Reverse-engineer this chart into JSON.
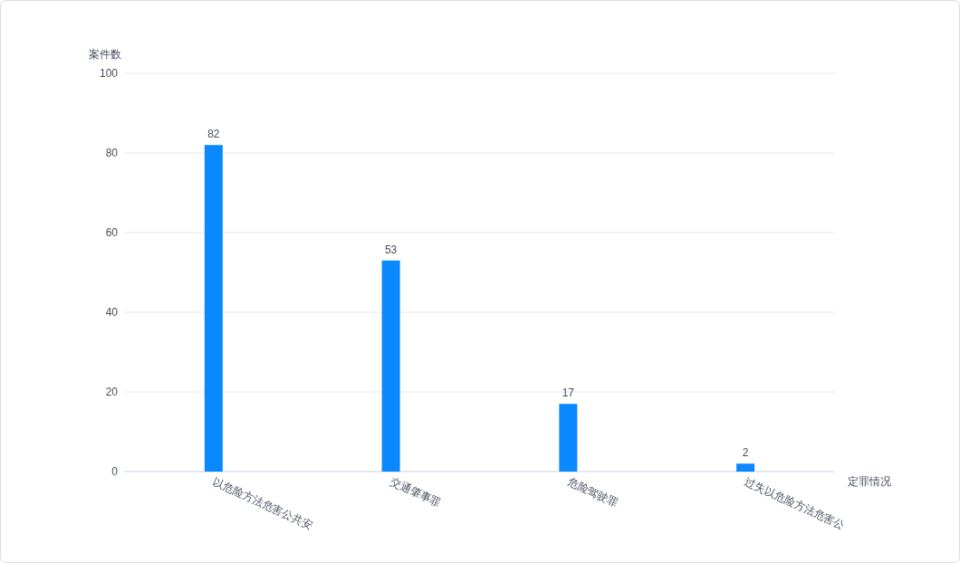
{
  "chart_data": {
    "type": "bar",
    "xlabel": "定罪情况",
    "ylabel": "案件数",
    "categories": [
      "以危险方法危害公共安",
      "交通肇事罪",
      "危险驾驶罪",
      "过失以危险方法危害公"
    ],
    "values": [
      82,
      53,
      17,
      2
    ],
    "color": "#0a89ff",
    "ylim": [
      0,
      100
    ],
    "yticks": [
      0,
      20,
      40,
      60,
      80,
      100
    ],
    "grid": "y",
    "data_labels": true
  }
}
